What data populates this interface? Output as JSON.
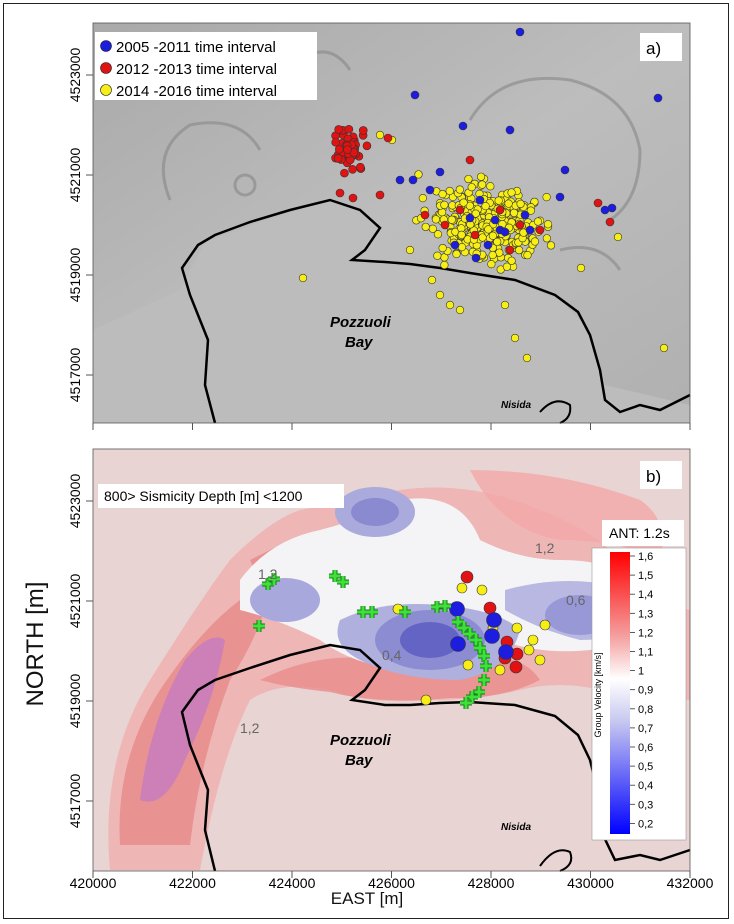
{
  "panel_a": {
    "label": "a)",
    "legend": [
      {
        "text": "2005 -2011 time interval",
        "color": "#1d1de0"
      },
      {
        "text": "2012 -2013 time interval",
        "color": "#e01212"
      },
      {
        "text": "2014 -2016 time interval",
        "color": "#f6ee14"
      }
    ],
    "bay_label_1": "Pozzuoli",
    "bay_label_2": "Bay",
    "island_label": "Nisida",
    "y_ticks": [
      "4523000",
      "4521000",
      "4519000",
      "4517000"
    ]
  },
  "panel_b": {
    "label": "b)",
    "depth_label": "800> Sismicity Depth [m] <1200",
    "ant_label": "ANT: 1.2s",
    "bay_label_1": "Pozzuoli",
    "bay_label_2": "Bay",
    "island_label": "Nisida",
    "contour_labels": [
      "1,2",
      "1,2",
      "1,2",
      "0,6",
      "0,4"
    ],
    "y_ticks": [
      "4523000",
      "4521000",
      "4519000",
      "4517000"
    ],
    "colorbar": {
      "title": "Group Velocity [km/s]",
      "ticks": [
        "1,6",
        "1,5",
        "1,4",
        "1,3",
        "1,2",
        "1,1",
        "1",
        "0,9",
        "0,8",
        "0,7",
        "0,6",
        "0,5",
        "0,4",
        "0,3",
        "0,2"
      ]
    }
  },
  "x_ticks": [
    "420000",
    "422000",
    "424000",
    "426000",
    "428000",
    "430000",
    "432000"
  ],
  "y_axis_title": "NORTH [m]",
  "x_axis_title": "EAST [m]",
  "colors": {
    "red": "#e01212",
    "blue": "#1d1de0",
    "yellow": "#f6ee14",
    "green": "#3ee03a"
  }
}
